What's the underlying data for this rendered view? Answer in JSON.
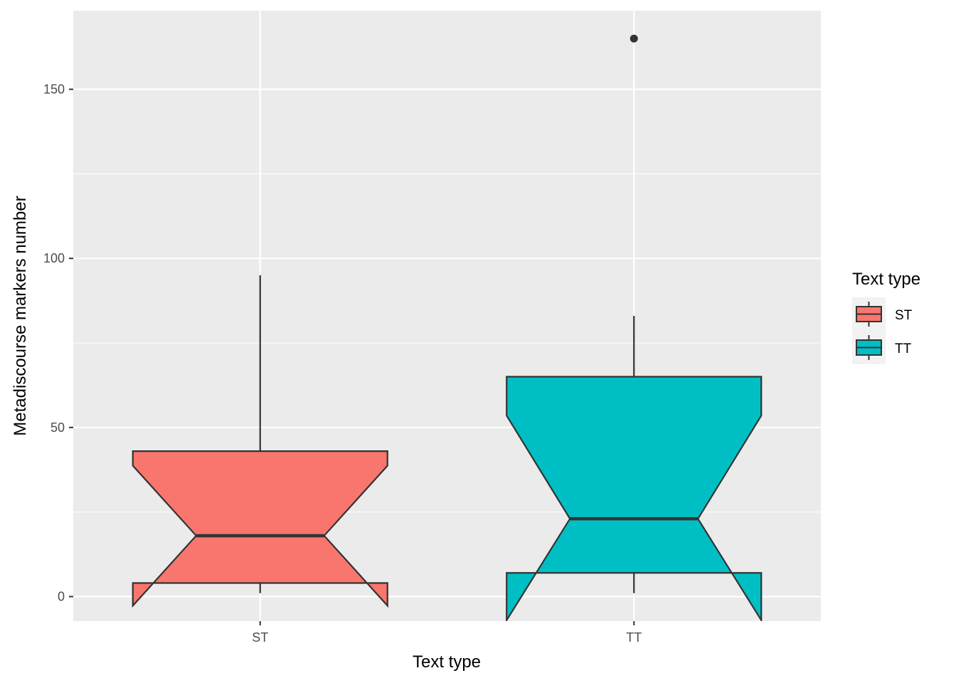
{
  "chart_data": {
    "type": "boxplot",
    "notched": true,
    "xlabel": "Text type",
    "ylabel": "Metadiscourse markers number",
    "categories": [
      "ST",
      "TT"
    ],
    "ylim": [
      -7,
      173
    ],
    "y_ticks": [
      0,
      50,
      100,
      150
    ],
    "grid": true,
    "legend": {
      "title": "Text type",
      "position": "right",
      "entries": [
        {
          "label": "ST",
          "color": "#F8766D"
        },
        {
          "label": "TT",
          "color": "#00BFC4"
        }
      ]
    },
    "boxes": [
      {
        "category": "ST",
        "color": "#F8766D",
        "whisker_low": 1,
        "q1": 4,
        "median": 18,
        "q3": 43,
        "whisker_high": 95,
        "notch_low": -2.7,
        "notch_high": 38.7,
        "outliers": []
      },
      {
        "category": "TT",
        "color": "#00BFC4",
        "whisker_low": 1,
        "q1": 7,
        "median": 23,
        "q3": 65,
        "whisker_high": 83,
        "notch_low": -7,
        "notch_high": 53.5,
        "outliers": [
          165
        ]
      }
    ]
  }
}
